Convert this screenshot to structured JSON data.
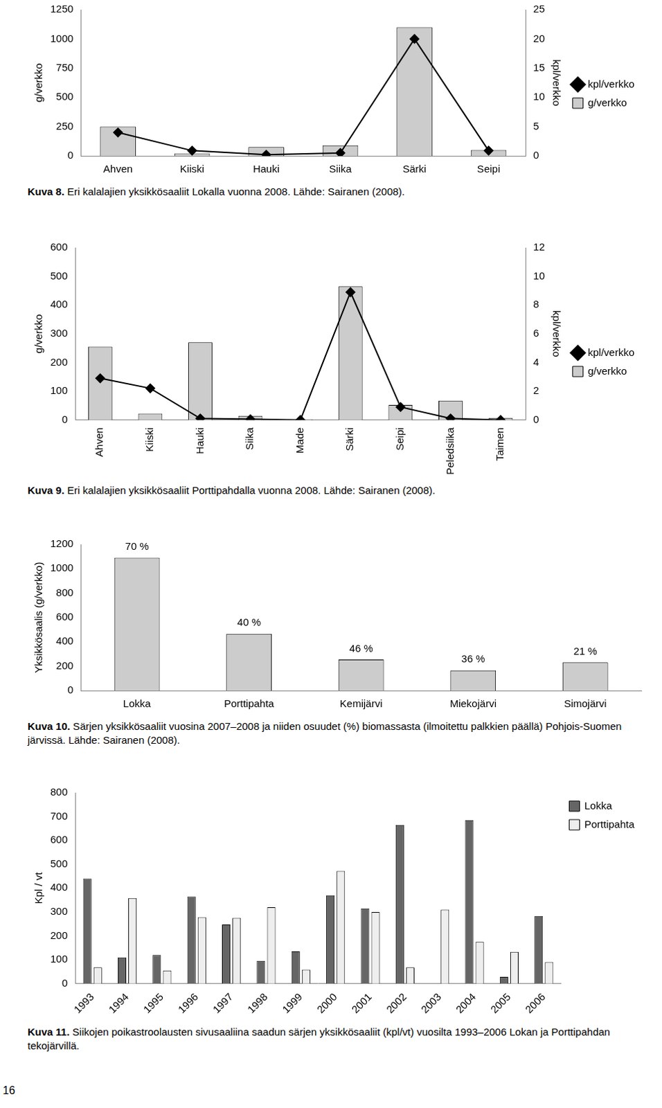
{
  "page": {
    "number": "16"
  },
  "chart_data": [
    {
      "type": "bar",
      "figure_label": "Kuva 8.",
      "title": "Eri kalalajien yksikkösaaliit Lokalla vuonna 2008. Lähde: Sairanen (2008).",
      "categories": [
        "Ahven",
        "Kiiski",
        "Hauki",
        "Siika",
        "Särki",
        "Seipi"
      ],
      "series": [
        {
          "name": "g/verkko",
          "type": "bar",
          "color": "#cccccc",
          "values": [
            250,
            20,
            75,
            90,
            1100,
            50
          ]
        },
        {
          "name": "kpl/verkko",
          "type": "line",
          "color": "#000000",
          "marker": "diamond",
          "axis": "y2",
          "values": [
            4,
            0.9,
            0.2,
            0.5,
            20,
            0.9
          ]
        }
      ],
      "ylabel": "g/verkko",
      "y2label": "kpl/verkko",
      "ylim": [
        0,
        1250
      ],
      "yticks": [
        0,
        250,
        500,
        750,
        1000,
        1250
      ],
      "y2lim": [
        0,
        25
      ],
      "y2ticks": [
        0,
        5,
        10,
        15,
        20,
        25
      ],
      "grid": false,
      "legend": "right"
    },
    {
      "type": "bar",
      "figure_label": "Kuva 9.",
      "title": "Eri kalalajien yksikkösaaliit Porttipahdalla vuonna 2008. Lähde: Sairanen (2008).",
      "categories": [
        "Ahven",
        "Kiiski",
        "Hauki",
        "Siika",
        "Made",
        "Särki",
        "Seipi",
        "Peledsiika",
        "Taimen"
      ],
      "series": [
        {
          "name": "g/verkko",
          "type": "bar",
          "color": "#cccccc",
          "values": [
            255,
            22,
            270,
            14,
            2,
            465,
            52,
            67,
            7
          ]
        },
        {
          "name": "kpl/verkko",
          "type": "line",
          "color": "#000000",
          "marker": "diamond",
          "axis": "y2",
          "values": [
            2.9,
            2.2,
            0.1,
            0.05,
            0,
            8.9,
            0.9,
            0.1,
            0
          ]
        }
      ],
      "ylabel": "g/verkko",
      "y2label": "kpl/verkko",
      "ylim": [
        0,
        600
      ],
      "yticks": [
        0,
        100,
        200,
        300,
        400,
        500,
        600
      ],
      "y2lim": [
        0,
        12
      ],
      "y2ticks": [
        0,
        2,
        4,
        6,
        8,
        10,
        12
      ],
      "grid": false,
      "legend": "right"
    },
    {
      "type": "bar",
      "figure_label": "Kuva 10.",
      "title": "Särjen yksikkösaaliit vuosina 2007–2008 ja niiden osuudet (%) biomassasta (ilmoitettu palkkien päällä) Pohjois-Suomen järvissä. Lähde: Sairanen (2008).",
      "categories": [
        "Lokka",
        "Porttipahta",
        "Kemijärvi",
        "Miekojärvi",
        "Simojärvi"
      ],
      "values": [
        1090,
        465,
        255,
        165,
        230
      ],
      "color": "#cccccc",
      "annotations": [
        {
          "category": "Lokka",
          "text": "70 %"
        },
        {
          "category": "Porttipahta",
          "text": "40 %"
        },
        {
          "category": "Kemijärvi",
          "text": "46 %"
        },
        {
          "category": "Miekojärvi",
          "text": "36 %"
        },
        {
          "category": "Simojärvi",
          "text": "21 %"
        }
      ],
      "ylabel": "Yksikkösaalis (g/verkko)",
      "ylim": [
        0,
        1200
      ],
      "yticks": [
        0,
        200,
        400,
        600,
        800,
        1000,
        1200
      ],
      "grid": false
    },
    {
      "type": "bar",
      "figure_label": "Kuva 11.",
      "title": "Siikojen poikastroolausten sivusaaliina saadun särjen yksikkösaaliit (kpl/vt) vuosilta 1993–2006 Lokan ja Porttipahdan tekojärvillä.",
      "categories": [
        "1993",
        "1994",
        "1995",
        "1996",
        "1997",
        "1998",
        "1999",
        "2000",
        "2001",
        "2002",
        "2003",
        "2004",
        "2005",
        "2006"
      ],
      "series": [
        {
          "name": "Lokka",
          "color": "#666666",
          "values": [
            440,
            110,
            120,
            365,
            248,
            95,
            135,
            370,
            315,
            665,
            null,
            685,
            28,
            283
          ]
        },
        {
          "name": "Porttipahta",
          "color": "#eeeeee",
          "values": [
            68,
            358,
            55,
            278,
            275,
            320,
            58,
            472,
            300,
            68,
            310,
            175,
            133,
            90
          ]
        }
      ],
      "ylabel": "Kpl / vt",
      "ylim": [
        0,
        800
      ],
      "yticks": [
        0,
        100,
        200,
        300,
        400,
        500,
        600,
        700,
        800
      ],
      "grid": false,
      "legend": "upper right"
    }
  ]
}
